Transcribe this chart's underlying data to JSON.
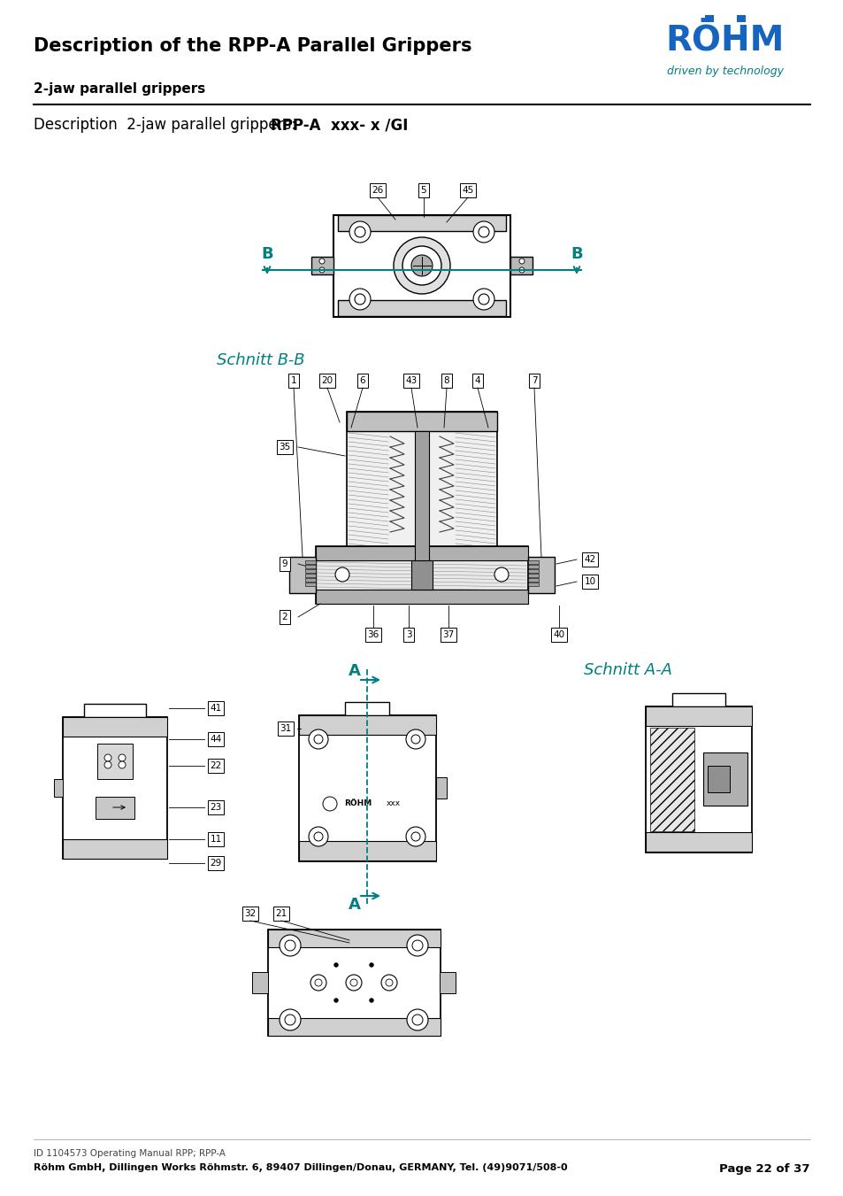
{
  "title": "Description of the RPP-A Parallel Grippers",
  "subtitle": "2-jaw parallel grippers",
  "desc_normal": "Description  2-jaw parallel grippers: ",
  "desc_bold": "RPP-A  xxx- x /GI",
  "footer_line1": "ID 1104573 Operating Manual RPP; RPP-A",
  "footer_line2": "Röhm GmbH, Dillingen Works Röhmstr. 6, 89407 Dillingen/Donau, GERMANY, Tel. (49)9071/508-0",
  "footer_page": "Page 22 of 37",
  "schnitt_bb": "Schnitt B-B",
  "schnitt_aa": "Schnitt A-A",
  "teal": "#008080",
  "black": "#000000",
  "dgray": "#444444",
  "mgray": "#888888",
  "lgray": "#cccccc",
  "white": "#ffffff",
  "bg": "#ffffff",
  "rohm_blue": "#1565C0"
}
